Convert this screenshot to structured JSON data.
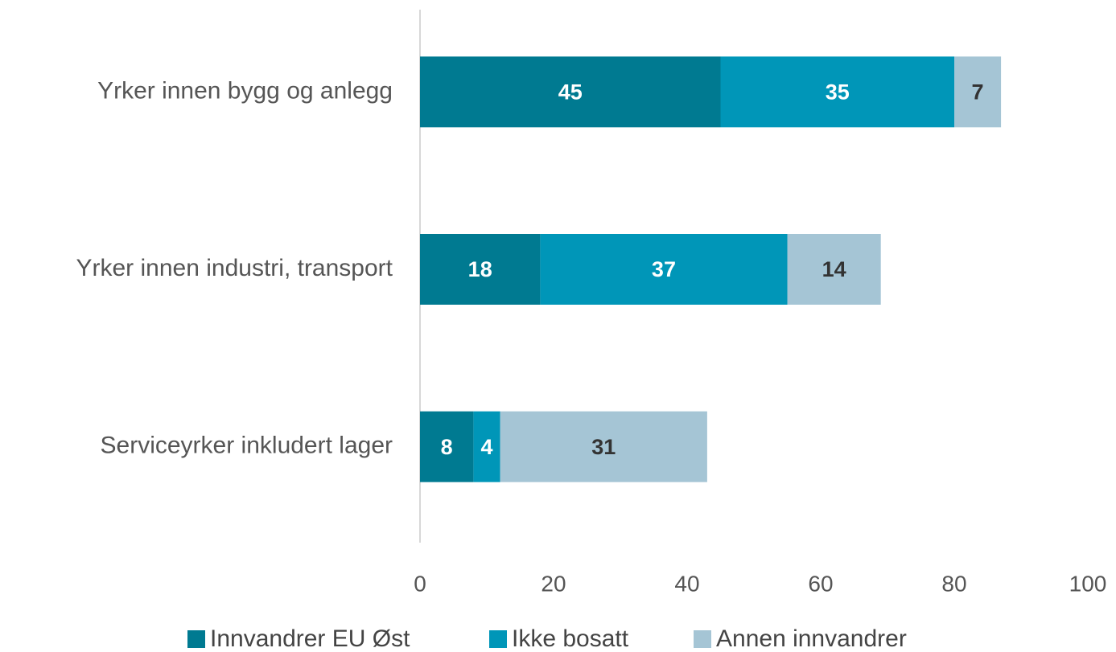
{
  "chart_data": {
    "type": "stacked_barh",
    "categories": [
      "Yrker innen bygg og anlegg",
      "Yrker innen industri, transport",
      "Serviceyrker inkludert lager"
    ],
    "series": [
      {
        "name": "Innvandrer EU Øst",
        "color": "#007a91",
        "values": [
          45,
          18,
          8
        ]
      },
      {
        "name": "Ikke bosatt",
        "color": "#0096b8",
        "values": [
          35,
          37,
          4
        ]
      },
      {
        "name": "Annen innvandrer",
        "color": "#a5c5d5",
        "values": [
          7,
          14,
          31
        ]
      }
    ],
    "xlim": [
      0,
      100
    ],
    "xticks": [
      0,
      20,
      40,
      60,
      80,
      100
    ]
  }
}
